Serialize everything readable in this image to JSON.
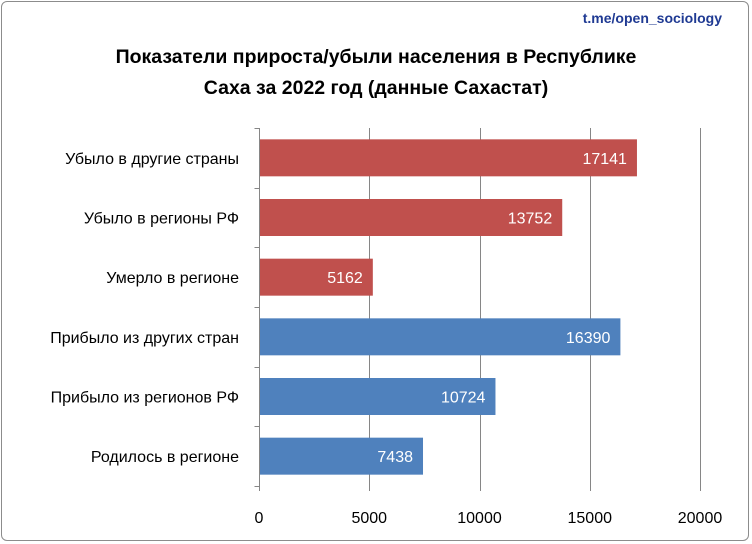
{
  "source_label": "t.me/open_sociology",
  "title_line1": "Показатели прироста/убыли населения в Республике",
  "title_line2": "Саха за 2022 год (данные Сахастат)",
  "chart_data": {
    "type": "bar",
    "orientation": "horizontal",
    "title": "Показатели прироста/убыли населения в Республике Саха за 2022 год (данные Сахастат)",
    "xlabel": "",
    "ylabel": "",
    "categories": [
      "Убыло в другие страны",
      "Убыло в регионы РФ",
      "Умерло в регионе",
      "Прибыло из других стран",
      "Прибыло из регионов РФ",
      "Родилось в регионе"
    ],
    "values": [
      17141,
      13752,
      5162,
      16390,
      10724,
      7438
    ],
    "colors": [
      "#c0504d",
      "#c0504d",
      "#c0504d",
      "#4f81bd",
      "#4f81bd",
      "#4f81bd"
    ],
    "xlim": [
      0,
      20000
    ],
    "xticks": [
      0,
      5000,
      10000,
      15000,
      20000
    ],
    "grid": true,
    "gridline_color": "#868686",
    "data_labels": true,
    "legend": "none"
  }
}
